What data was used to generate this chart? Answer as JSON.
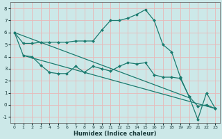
{
  "xlabel": "Humidex (Indice chaleur)",
  "bg_color": "#cce8e8",
  "grid_color": "#e8b8b8",
  "line_color": "#1a7a6e",
  "xlim": [
    -0.5,
    23.5
  ],
  "ylim": [
    -1.5,
    8.5
  ],
  "xticks": [
    0,
    1,
    2,
    3,
    4,
    5,
    6,
    7,
    8,
    9,
    10,
    11,
    12,
    13,
    14,
    15,
    16,
    17,
    18,
    19,
    20,
    21,
    22,
    23
  ],
  "yticks": [
    -1,
    0,
    1,
    2,
    3,
    4,
    5,
    6,
    7,
    8
  ],
  "series": [
    {
      "x": [
        0,
        1,
        2,
        3,
        4,
        5,
        6,
        7,
        8,
        9,
        10,
        11,
        12,
        13,
        14,
        15,
        16,
        17,
        18,
        19,
        20,
        21,
        22,
        23
      ],
      "y": [
        6.0,
        5.1,
        5.1,
        5.2,
        5.2,
        5.2,
        5.2,
        5.3,
        5.3,
        5.3,
        6.2,
        7.0,
        7.0,
        7.2,
        7.5,
        7.9,
        7.0,
        5.0,
        4.4,
        2.3,
        0.7,
        -1.2,
        1.0,
        -0.3
      ],
      "marker": true,
      "linestyle": "solid"
    },
    {
      "x": [
        0,
        1,
        2,
        3,
        4,
        5,
        6,
        7,
        8,
        9,
        10,
        11,
        12,
        13,
        14,
        15,
        16,
        17,
        18,
        19,
        20,
        21,
        22,
        23
      ],
      "y": [
        6.0,
        4.1,
        4.0,
        3.3,
        2.7,
        2.6,
        2.6,
        3.2,
        2.7,
        3.2,
        3.0,
        2.8,
        3.2,
        3.5,
        3.4,
        3.5,
        2.5,
        2.3,
        2.3,
        2.2,
        0.7,
        -0.1,
        0.0,
        -0.3
      ],
      "marker": true,
      "linestyle": "solid"
    },
    {
      "x": [
        0,
        20
      ],
      "y": [
        6.0,
        0.6
      ],
      "marker": false,
      "linestyle": "solid"
    },
    {
      "x": [
        1,
        23
      ],
      "y": [
        4.1,
        -0.3
      ],
      "marker": false,
      "linestyle": "solid"
    }
  ]
}
